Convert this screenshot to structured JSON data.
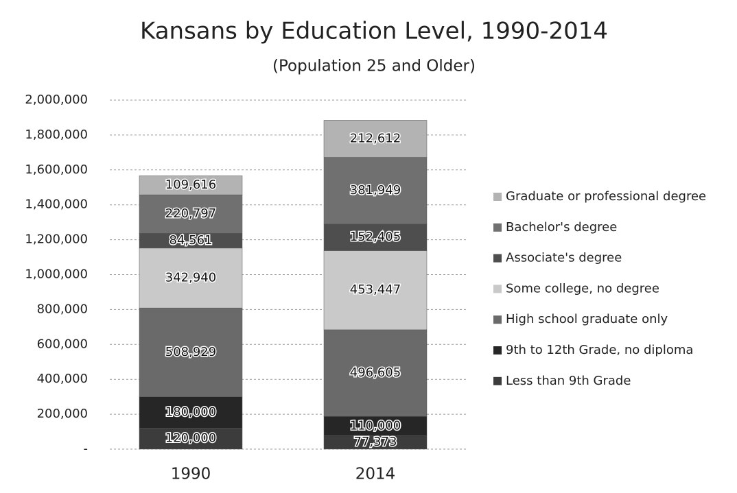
{
  "chart_data": {
    "type": "stacked_bar",
    "title": "Kansans by Education Level, 1990-2014",
    "subtitle": "(Population 25 and Older)",
    "categories": [
      "1990",
      "2014"
    ],
    "series": [
      {
        "name": "Less than 9th Grade",
        "color": "#3c3c3c",
        "values": [
          120000,
          77373
        ],
        "value_labels": [
          "120,000",
          "77,373"
        ]
      },
      {
        "name": "9th to 12th Grade, no diploma",
        "color": "#262626",
        "values": [
          180000,
          110000
        ],
        "value_labels": [
          "180,000",
          "110,000"
        ]
      },
      {
        "name": "High school graduate only",
        "color": "#6a6a6a",
        "values": [
          508929,
          496605
        ],
        "value_labels": [
          "508,929",
          "496,605"
        ]
      },
      {
        "name": "Some college, no degree",
        "color": "#c9c9c9",
        "values": [
          342940,
          453447
        ],
        "value_labels": [
          "342,940",
          "453,447"
        ]
      },
      {
        "name": "Associate's degree",
        "color": "#4e4e4e",
        "values": [
          84561,
          152405
        ],
        "value_labels": [
          "84,561",
          "152,405"
        ]
      },
      {
        "name": "Bachelor's degree",
        "color": "#707070",
        "values": [
          220797,
          381949
        ],
        "value_labels": [
          "220,797",
          "381,949"
        ]
      },
      {
        "name": "Graduate or professional degree",
        "color": "#b3b3b3",
        "values": [
          109616,
          212612
        ],
        "value_labels": [
          "109,616",
          "212,612"
        ]
      }
    ],
    "ylim": [
      0,
      2000000
    ],
    "yticks": [
      {
        "value": 0,
        "label": "-"
      },
      {
        "value": 200000,
        "label": "200,000"
      },
      {
        "value": 400000,
        "label": "400,000"
      },
      {
        "value": 600000,
        "label": "600,000"
      },
      {
        "value": 800000,
        "label": "800,000"
      },
      {
        "value": 1000000,
        "label": "1,000,000"
      },
      {
        "value": 1200000,
        "label": "1,200,000"
      },
      {
        "value": 1400000,
        "label": "1,400,000"
      },
      {
        "value": 1600000,
        "label": "1,600,000"
      },
      {
        "value": 1800000,
        "label": "1,800,000"
      },
      {
        "value": 2000000,
        "label": "2,000,000"
      }
    ],
    "grid": true,
    "legend": "right"
  }
}
